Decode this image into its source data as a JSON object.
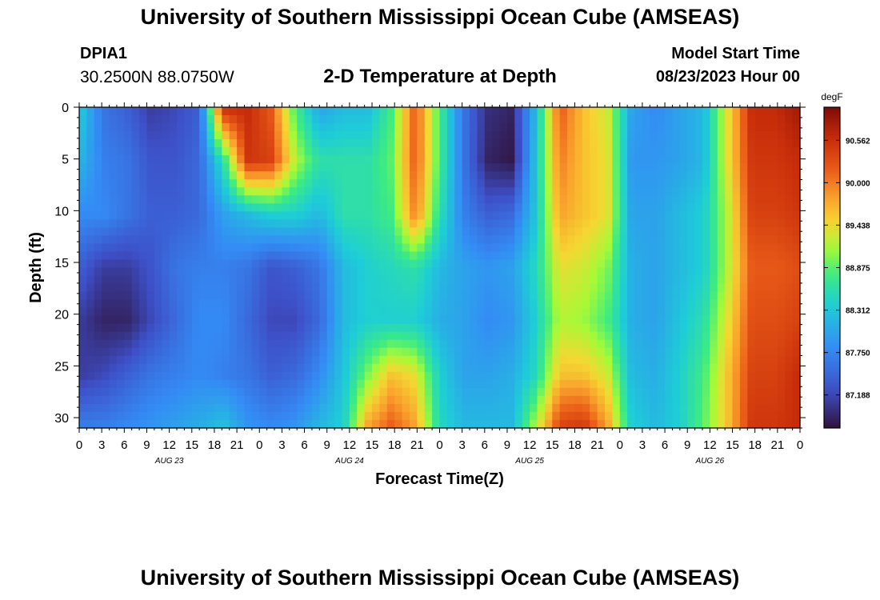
{
  "header": {
    "title": "University of Southern Mississippi Ocean Cube (AMSEAS)",
    "station_id": "DPIA1",
    "location": "30.2500N  88.0750W",
    "subtitle": "2-D Temperature at Depth",
    "model_start_label": "Model Start Time",
    "model_start_value": "08/23/2023 Hour 00"
  },
  "footer": {
    "title": "University of Southern Mississippi Ocean Cube (AMSEAS)"
  },
  "chart_data": {
    "type": "heatmap",
    "xlabel": "Forecast Time(Z)",
    "ylabel": "Depth (ft)",
    "x_hours": [
      0,
      3,
      6,
      9,
      12,
      15,
      18,
      21,
      24,
      27,
      30,
      33,
      36,
      39,
      42,
      45,
      48,
      51,
      54,
      57,
      60,
      63,
      66,
      69,
      72,
      75,
      78,
      81,
      84,
      87,
      90,
      93,
      96
    ],
    "x_tick_labels": [
      "0",
      "3",
      "6",
      "9",
      "12",
      "15",
      "18",
      "21",
      "0",
      "3",
      "6",
      "9",
      "12",
      "15",
      "18",
      "21",
      "0",
      "3",
      "6",
      "9",
      "12",
      "15",
      "18",
      "21",
      "0",
      "3",
      "6",
      "9",
      "12",
      "15",
      "18",
      "21",
      "0"
    ],
    "xlim": [
      0,
      96
    ],
    "date_labels": [
      {
        "hour": 12,
        "text": "AUG 23"
      },
      {
        "hour": 36,
        "text": "AUG 24"
      },
      {
        "hour": 60,
        "text": "AUG 25"
      },
      {
        "hour": 84,
        "text": "AUG 26"
      }
    ],
    "depth_ft": [
      0,
      5,
      10,
      15,
      20,
      25,
      30
    ],
    "y_tick_labels": [
      "0",
      "5",
      "10",
      "15",
      "20",
      "25",
      "30"
    ],
    "ylim": [
      0,
      31
    ],
    "y_inverted": true,
    "colorbar": {
      "unit": "degF",
      "range": [
        86.75,
        91.0
      ],
      "tick_values": [
        87.188,
        87.75,
        88.312,
        88.875,
        89.438,
        90.0,
        90.562
      ],
      "tick_labels": [
        "87.188",
        "87.750",
        "88.312",
        "88.875",
        "89.438",
        "90.000",
        "90.562"
      ]
    },
    "temperature_degF": [
      [
        88.4,
        87.6,
        87.4,
        87.1,
        87.2,
        87.4,
        90.6,
        90.6,
        90.2,
        88.8,
        88.0,
        88.2,
        88.2,
        88.8,
        90.2,
        88.8,
        87.6,
        87.0,
        86.9,
        88.2,
        90.2,
        89.6,
        89.3,
        88.0,
        87.8,
        88.0,
        88.2,
        89.4,
        90.6,
        90.6,
        90.8
      ],
      [
        88.2,
        87.7,
        87.6,
        87.3,
        87.3,
        87.5,
        88.6,
        90.5,
        90.4,
        89.2,
        88.6,
        88.6,
        88.6,
        88.9,
        90.2,
        88.8,
        87.6,
        86.9,
        86.8,
        88.3,
        90.0,
        89.6,
        89.4,
        87.9,
        87.9,
        88.0,
        88.2,
        89.4,
        90.5,
        90.5,
        90.6
      ],
      [
        87.8,
        87.8,
        87.6,
        87.4,
        87.4,
        87.5,
        88.0,
        88.2,
        88.4,
        88.4,
        88.2,
        88.6,
        88.6,
        88.8,
        90.0,
        88.6,
        87.7,
        87.4,
        87.5,
        88.3,
        89.8,
        89.6,
        89.4,
        88.0,
        88.0,
        88.2,
        88.4,
        89.2,
        90.4,
        90.4,
        90.5
      ],
      [
        87.4,
        87.1,
        87.1,
        87.3,
        87.6,
        87.7,
        87.7,
        87.6,
        87.3,
        87.4,
        87.6,
        88.2,
        88.4,
        88.5,
        88.6,
        88.2,
        88.0,
        87.9,
        88.0,
        88.5,
        89.4,
        89.3,
        89.0,
        88.1,
        88.0,
        88.2,
        88.4,
        89.2,
        90.2,
        90.2,
        90.3
      ],
      [
        87.1,
        86.9,
        86.9,
        87.2,
        87.5,
        87.8,
        87.8,
        87.5,
        87.2,
        87.2,
        87.5,
        88.2,
        88.4,
        88.4,
        88.4,
        88.1,
        88.0,
        87.8,
        87.9,
        88.4,
        89.2,
        89.1,
        88.8,
        88.1,
        88.0,
        88.3,
        88.6,
        89.4,
        90.3,
        90.3,
        90.4
      ],
      [
        87.1,
        87.2,
        87.4,
        87.6,
        87.7,
        87.8,
        87.7,
        87.6,
        87.4,
        87.5,
        87.8,
        88.3,
        89.0,
        89.6,
        89.4,
        88.4,
        88.0,
        88.0,
        88.1,
        88.5,
        89.6,
        89.6,
        89.3,
        88.2,
        88.1,
        88.4,
        88.8,
        89.6,
        90.4,
        90.4,
        90.6
      ],
      [
        87.7,
        87.7,
        87.8,
        87.9,
        88.0,
        88.1,
        88.3,
        87.9,
        87.8,
        87.9,
        88.2,
        88.4,
        89.8,
        90.2,
        89.8,
        88.5,
        88.2,
        88.2,
        88.2,
        89.2,
        90.4,
        90.5,
        89.8,
        88.4,
        88.2,
        88.4,
        88.9,
        89.6,
        90.5,
        90.5,
        90.6
      ]
    ]
  }
}
